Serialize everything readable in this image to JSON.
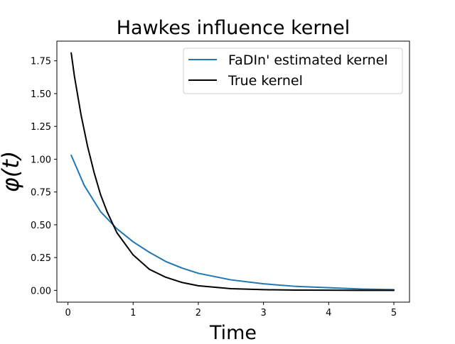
{
  "chart_data": {
    "type": "line",
    "title": "Hawkes influence kernel",
    "xlabel": "Time",
    "ylabel": "φ(t)",
    "xlim": [
      -0.17,
      5.24
    ],
    "ylim": [
      -0.09,
      1.9
    ],
    "xticks": [
      0,
      1,
      2,
      3,
      4,
      5
    ],
    "yticks": [
      0.0,
      0.25,
      0.5,
      0.75,
      1.0,
      1.25,
      1.5,
      1.75
    ],
    "xtick_labels": [
      "0",
      "1",
      "2",
      "3",
      "4",
      "5"
    ],
    "ytick_labels": [
      "0.00",
      "0.25",
      "0.50",
      "0.75",
      "1.00",
      "1.25",
      "1.50",
      "1.75"
    ],
    "grid": false,
    "legend_position": "top-right",
    "series": [
      {
        "name": "FaDIn' estimated kernel",
        "color": "#1f77b4",
        "x": [
          0.05,
          0.25,
          0.5,
          0.75,
          1.0,
          1.25,
          1.5,
          1.75,
          2.0,
          2.5,
          3.0,
          3.5,
          4.0,
          4.5,
          5.0
        ],
        "y": [
          1.03,
          0.8,
          0.6,
          0.47,
          0.37,
          0.29,
          0.22,
          0.17,
          0.13,
          0.08,
          0.05,
          0.03,
          0.02,
          0.01,
          0.005
        ]
      },
      {
        "name": "True kernel",
        "color": "#000000",
        "x": [
          0.05,
          0.1,
          0.2,
          0.3,
          0.4,
          0.5,
          0.6,
          0.75,
          1.0,
          1.25,
          1.5,
          1.75,
          2.0,
          2.5,
          3.0,
          3.5,
          4.0,
          4.5,
          5.0
        ],
        "y": [
          1.81,
          1.63,
          1.34,
          1.1,
          0.9,
          0.73,
          0.6,
          0.44,
          0.27,
          0.16,
          0.1,
          0.06,
          0.035,
          0.013,
          0.005,
          0.002,
          0.001,
          0.0,
          0.0
        ]
      }
    ]
  }
}
